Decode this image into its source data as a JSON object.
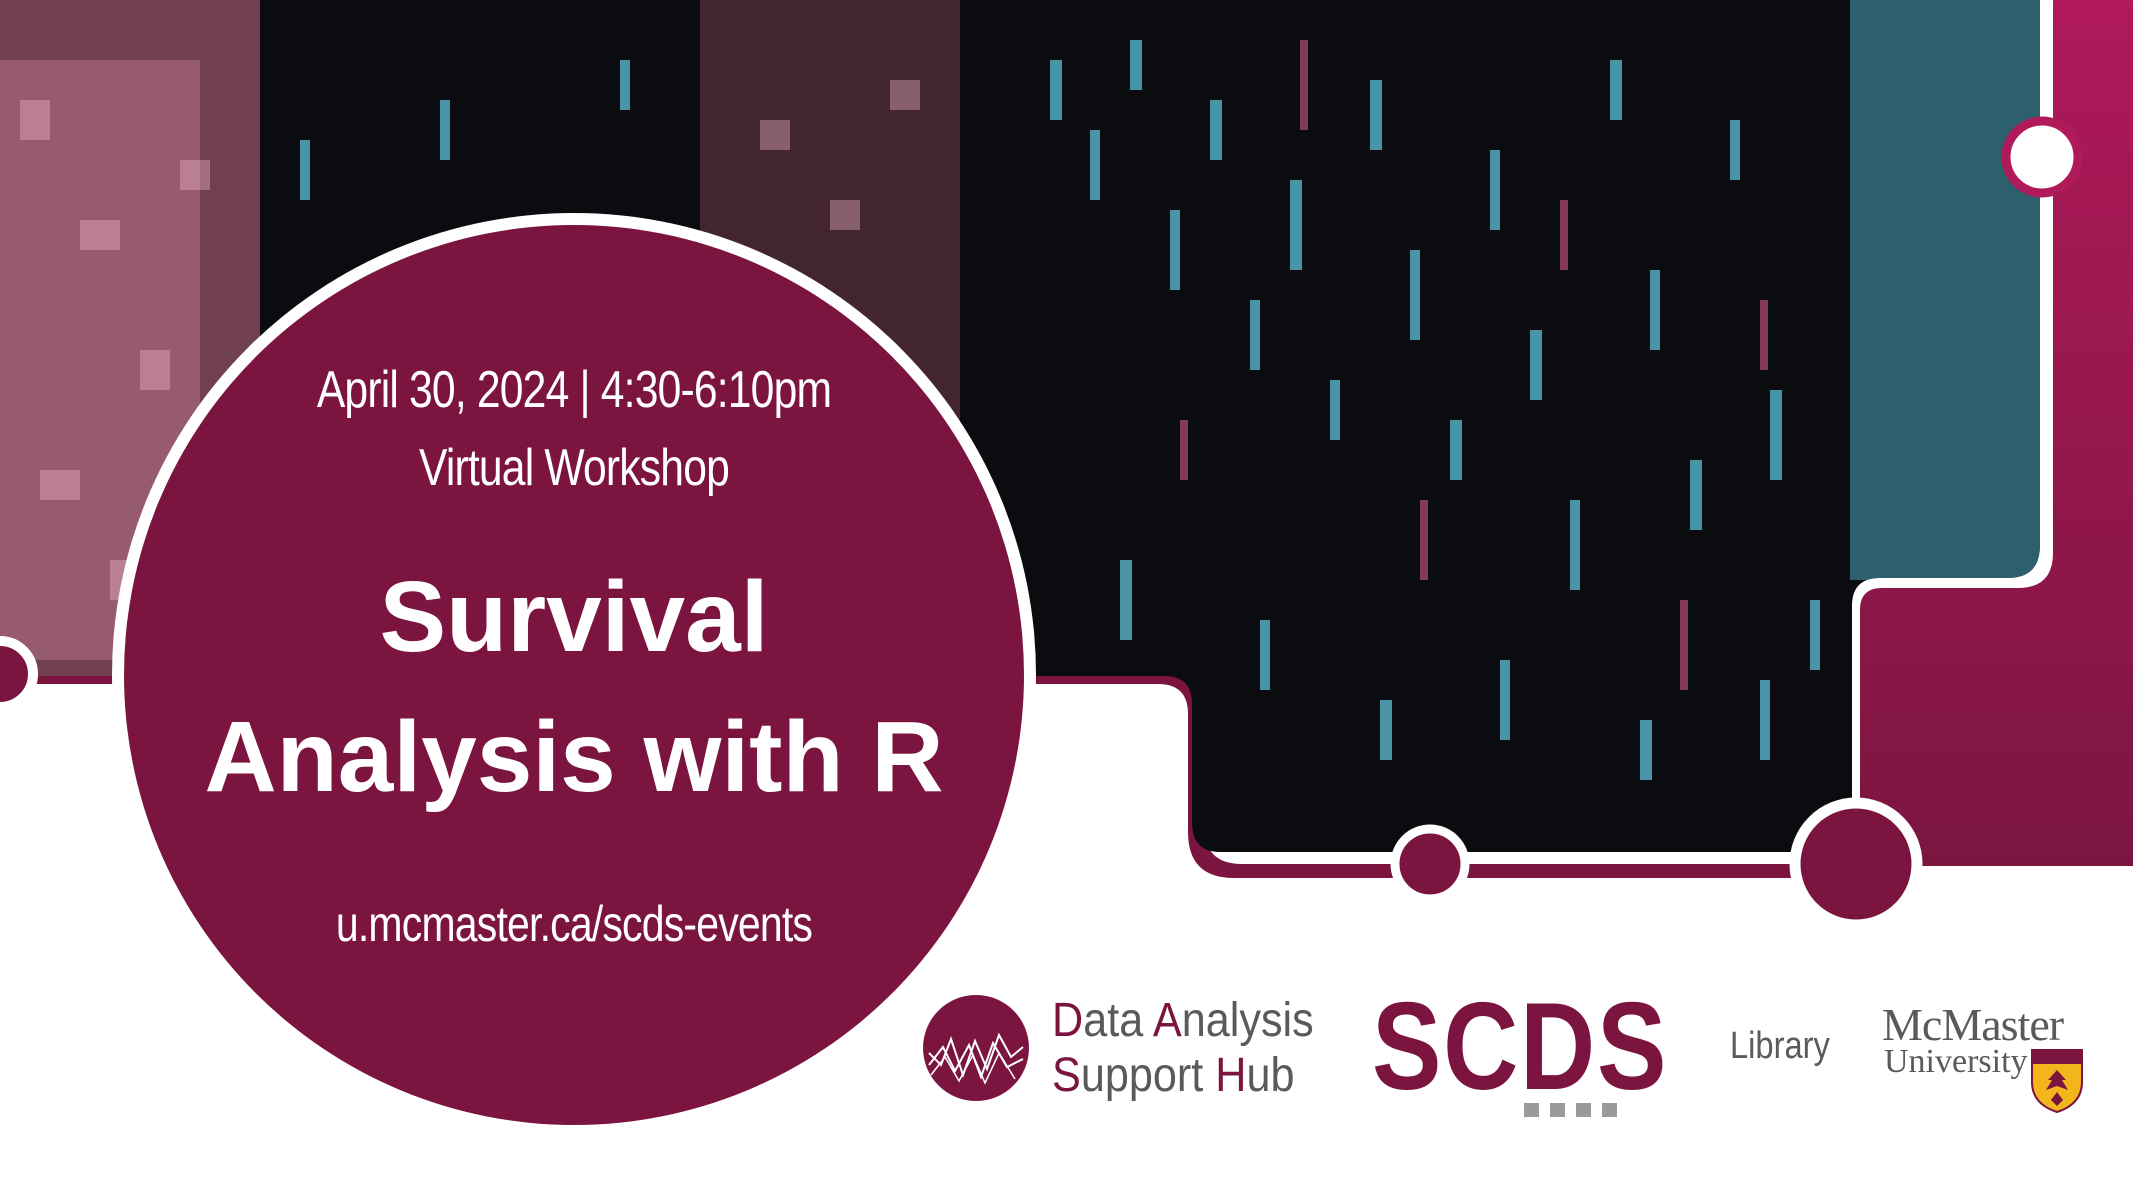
{
  "event": {
    "date_time": "April 30, 2024 | 4:30-6:10pm",
    "format": "Virtual Workshop",
    "title_line1": "Survival",
    "title_line2": "Analysis with R",
    "url": "u.mcmaster.ca/scds-events"
  },
  "logos": {
    "hub": {
      "line1_first_letter": "D",
      "line1_part_a": "ata ",
      "line1_second_letter": "A",
      "line1_part_b": "nalysis",
      "line2_first_letter": "S",
      "line2_part_a": "upport ",
      "line2_second_letter": "H",
      "line2_part_b": "ub",
      "icon": "data-chart-icon"
    },
    "scds": "SCDS",
    "library": "Library",
    "mcmaster_name": "McMaster",
    "mcmaster_university": "University",
    "mcmaster_crest": "crest-icon"
  },
  "colors": {
    "maroon": "#7b1540",
    "magenta": "#b0195a",
    "gray_text": "#5a5a5a",
    "background": "#ffffff"
  }
}
